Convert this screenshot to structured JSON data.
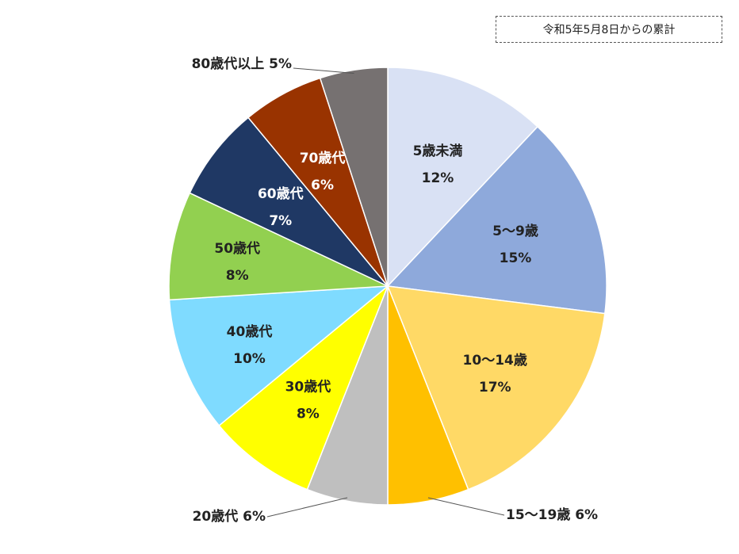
{
  "note": "令和5年5月8日からの累計",
  "chart_data": {
    "type": "pie",
    "title": "",
    "start_angle_deg": 0,
    "direction": "clockwise",
    "slices": [
      {
        "name": "5歳未満",
        "value": 12,
        "pct_label": "12%",
        "color": "#D9E1F4"
      },
      {
        "name": "5～9歳",
        "value": 15,
        "pct_label": "15%",
        "color": "#8EA9DB"
      },
      {
        "name": "10～14歳",
        "value": 17,
        "pct_label": "17%",
        "color": "#FFD966"
      },
      {
        "name": "15～19歳",
        "value": 6,
        "pct_label": "6%",
        "color": "#FFC000"
      },
      {
        "name": "20歳代",
        "value": 6,
        "pct_label": "6%",
        "color": "#BFBFBF"
      },
      {
        "name": "30歳代",
        "value": 8,
        "pct_label": "8%",
        "color": "#FFFF00"
      },
      {
        "name": "40歳代",
        "value": 10,
        "pct_label": "10%",
        "color": "#7FDBFF"
      },
      {
        "name": "50歳代",
        "value": 8,
        "pct_label": "8%",
        "color": "#92D050"
      },
      {
        "name": "60歳代",
        "value": 7,
        "pct_label": "7%",
        "color": "#1F3864"
      },
      {
        "name": "70歳代",
        "value": 6,
        "pct_label": "6%",
        "color": "#993300"
      },
      {
        "name": "80歳代以上",
        "value": 5,
        "pct_label": "5%",
        "color": "#767171"
      }
    ]
  }
}
